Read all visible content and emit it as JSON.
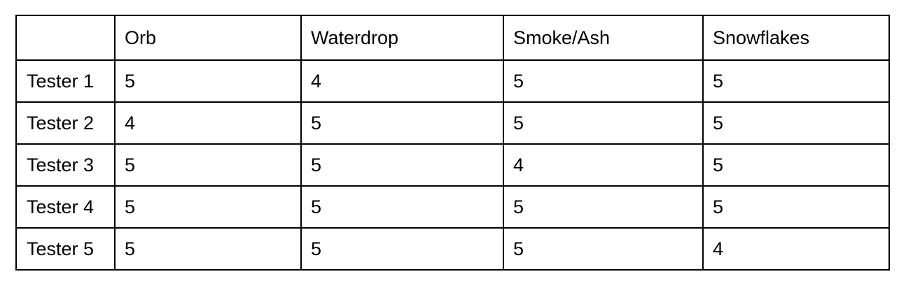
{
  "table": {
    "corner": "",
    "columns": [
      "Orb",
      "Waterdrop",
      "Smoke/Ash",
      "Snowflakes"
    ],
    "rows": [
      {
        "label": "Tester 1",
        "values": [
          "5",
          "4",
          "5",
          "5"
        ]
      },
      {
        "label": "Tester 2",
        "values": [
          "4",
          "5",
          "5",
          "5"
        ]
      },
      {
        "label": "Tester 3",
        "values": [
          "5",
          "5",
          "4",
          "5"
        ]
      },
      {
        "label": "Tester 4",
        "values": [
          "5",
          "5",
          "5",
          "5"
        ]
      },
      {
        "label": "Tester 5",
        "values": [
          "5",
          "5",
          "5",
          "4"
        ]
      }
    ]
  }
}
